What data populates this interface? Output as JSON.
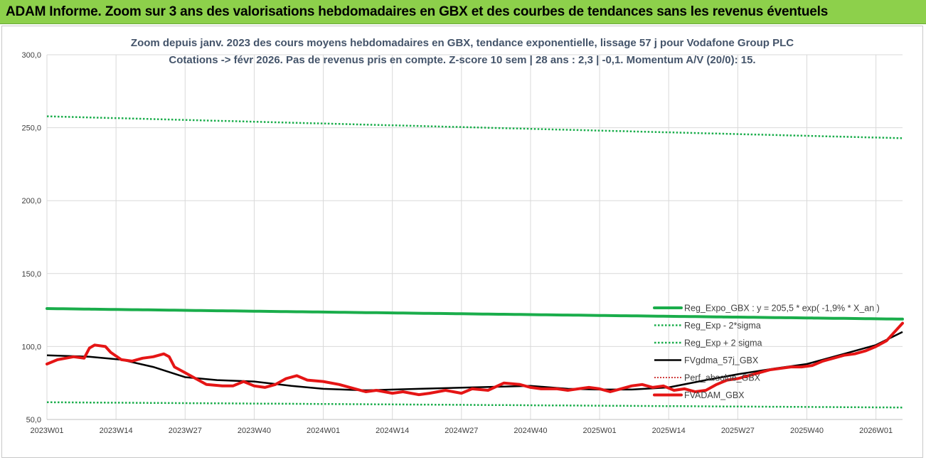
{
  "header": {
    "title": "ADAM Informe. Zoom sur 3 ans des valorisations hebdomadaires en GBX et des courbes de tendances sans les revenus éventuels"
  },
  "chart_data": {
    "type": "line",
    "subtitle_line1": "Zoom depuis janv. 2023 des cours moyens hebdomadaires en GBX, tendance exponentielle, lissage 57 j pour Vodafone Group PLC",
    "subtitle_line2": "Cotations -> févr 2026. Pas de revenus pris en compte. Z-score 10 sem | 28 ans : 2,3 | -0,1. Momentum A/V (20/0): 15.",
    "ylim": [
      50,
      300
    ],
    "yticks": [
      "50,0",
      "100,0",
      "150,0",
      "200,0",
      "250,0",
      "300,0"
    ],
    "ytick_values": [
      50,
      100,
      150,
      200,
      250,
      300
    ],
    "xtick_labels": [
      "2023W01",
      "2023W14",
      "2023W27",
      "2023W40",
      "2024W01",
      "2024W14",
      "2024W27",
      "2024W40",
      "2025W01",
      "2025W14",
      "2025W27",
      "2025W40",
      "2026W01"
    ],
    "xtick_index": [
      0,
      13,
      26,
      39,
      52,
      65,
      78,
      91,
      104,
      117,
      130,
      143,
      156
    ],
    "n_points": 162,
    "grid": true,
    "legend_position": "bottom-right",
    "series": [
      {
        "name": "Reg_Expo_GBX : y = 205,5 * exp( -1,9% * X_an )",
        "color": "#1aad4b",
        "style": "solid-thick",
        "start": 126.0,
        "end": 118.8
      },
      {
        "name": "Reg_Exp - 2*sigma",
        "color": "#1aad4b",
        "style": "dotted",
        "start": 61.8,
        "end": 58.2
      },
      {
        "name": "Reg_Exp + 2 sigma",
        "color": "#1aad4b",
        "style": "dotted",
        "start": 257.8,
        "end": 242.8
      },
      {
        "name": "FVgdma_57j_GBX",
        "color": "#000000",
        "style": "solid",
        "points": [
          [
            0,
            94
          ],
          [
            8,
            93
          ],
          [
            14,
            91
          ],
          [
            20,
            86
          ],
          [
            26,
            79
          ],
          [
            32,
            77
          ],
          [
            39,
            76
          ],
          [
            46,
            73
          ],
          [
            52,
            71
          ],
          [
            60,
            70
          ],
          [
            70,
            71
          ],
          [
            80,
            72
          ],
          [
            91,
            73
          ],
          [
            98,
            71
          ],
          [
            104,
            70.5
          ],
          [
            110,
            70.5
          ],
          [
            117,
            72
          ],
          [
            124,
            77
          ],
          [
            130,
            81
          ],
          [
            137,
            85
          ],
          [
            143,
            88
          ],
          [
            150,
            95
          ],
          [
            156,
            101
          ],
          [
            161,
            110
          ]
        ]
      },
      {
        "name": "Perf_absolue_GBX",
        "color": "#c00000",
        "style": "dotted-thin",
        "points": [
          [
            0,
            88
          ],
          [
            2,
            91
          ],
          [
            5,
            93
          ],
          [
            7,
            92
          ],
          [
            8,
            99
          ],
          [
            9,
            101
          ],
          [
            11,
            100
          ],
          [
            12,
            96
          ],
          [
            14,
            91
          ],
          [
            16,
            90
          ],
          [
            18,
            92
          ],
          [
            20,
            93
          ],
          [
            22,
            95
          ],
          [
            23,
            93
          ],
          [
            24,
            86
          ],
          [
            26,
            82
          ],
          [
            28,
            78
          ],
          [
            30,
            74
          ],
          [
            33,
            73
          ],
          [
            35,
            73
          ],
          [
            37,
            76
          ],
          [
            39,
            73
          ],
          [
            41,
            72
          ],
          [
            43,
            74
          ],
          [
            45,
            78
          ],
          [
            47,
            80
          ],
          [
            49,
            77
          ],
          [
            52,
            76
          ],
          [
            55,
            74
          ],
          [
            57,
            72
          ],
          [
            60,
            69
          ],
          [
            62,
            70
          ],
          [
            65,
            68
          ],
          [
            67,
            69
          ],
          [
            70,
            67
          ],
          [
            72,
            68
          ],
          [
            75,
            70
          ],
          [
            78,
            68
          ],
          [
            80,
            71
          ],
          [
            83,
            70
          ],
          [
            86,
            75
          ],
          [
            89,
            74
          ],
          [
            91,
            72
          ],
          [
            93,
            71
          ],
          [
            96,
            71
          ],
          [
            98,
            70
          ],
          [
            100,
            71
          ],
          [
            102,
            72
          ],
          [
            104,
            71
          ],
          [
            106,
            69
          ],
          [
            108,
            71
          ],
          [
            110,
            73
          ],
          [
            112,
            74
          ],
          [
            114,
            72
          ],
          [
            116,
            73
          ],
          [
            118,
            70
          ],
          [
            120,
            71
          ],
          [
            122,
            69
          ],
          [
            124,
            70
          ],
          [
            126,
            74
          ],
          [
            128,
            77
          ],
          [
            130,
            78
          ],
          [
            132,
            80
          ],
          [
            134,
            82
          ],
          [
            136,
            84
          ],
          [
            138,
            85
          ],
          [
            140,
            86
          ],
          [
            142,
            86
          ],
          [
            144,
            87
          ],
          [
            146,
            90
          ],
          [
            148,
            92
          ],
          [
            150,
            94
          ],
          [
            152,
            95
          ],
          [
            154,
            97
          ],
          [
            156,
            100
          ],
          [
            158,
            104
          ],
          [
            160,
            112
          ],
          [
            161,
            116
          ]
        ]
      },
      {
        "name": "FVADAM_GBX",
        "color": "#e51515",
        "style": "solid-thick",
        "points": [
          [
            0,
            88
          ],
          [
            2,
            91
          ],
          [
            5,
            93
          ],
          [
            7,
            92
          ],
          [
            8,
            99
          ],
          [
            9,
            101
          ],
          [
            11,
            100
          ],
          [
            12,
            96
          ],
          [
            14,
            91
          ],
          [
            16,
            90
          ],
          [
            18,
            92
          ],
          [
            20,
            93
          ],
          [
            22,
            95
          ],
          [
            23,
            93
          ],
          [
            24,
            86
          ],
          [
            26,
            82
          ],
          [
            28,
            78
          ],
          [
            30,
            74
          ],
          [
            33,
            73
          ],
          [
            35,
            73
          ],
          [
            37,
            76
          ],
          [
            39,
            73
          ],
          [
            41,
            72
          ],
          [
            43,
            74
          ],
          [
            45,
            78
          ],
          [
            47,
            80
          ],
          [
            49,
            77
          ],
          [
            52,
            76
          ],
          [
            55,
            74
          ],
          [
            57,
            72
          ],
          [
            60,
            69
          ],
          [
            62,
            70
          ],
          [
            65,
            68
          ],
          [
            67,
            69
          ],
          [
            70,
            67
          ],
          [
            72,
            68
          ],
          [
            75,
            70
          ],
          [
            78,
            68
          ],
          [
            80,
            71
          ],
          [
            83,
            70
          ],
          [
            86,
            75
          ],
          [
            89,
            74
          ],
          [
            91,
            72
          ],
          [
            93,
            71
          ],
          [
            96,
            71
          ],
          [
            98,
            70
          ],
          [
            100,
            71
          ],
          [
            102,
            72
          ],
          [
            104,
            71
          ],
          [
            106,
            69
          ],
          [
            108,
            71
          ],
          [
            110,
            73
          ],
          [
            112,
            74
          ],
          [
            114,
            72
          ],
          [
            116,
            73
          ],
          [
            118,
            70
          ],
          [
            120,
            71
          ],
          [
            122,
            69
          ],
          [
            124,
            70
          ],
          [
            126,
            74
          ],
          [
            128,
            77
          ],
          [
            130,
            78
          ],
          [
            132,
            80
          ],
          [
            134,
            82
          ],
          [
            136,
            84
          ],
          [
            138,
            85
          ],
          [
            140,
            86
          ],
          [
            142,
            86
          ],
          [
            144,
            87
          ],
          [
            146,
            90
          ],
          [
            148,
            92
          ],
          [
            150,
            94
          ],
          [
            152,
            95
          ],
          [
            154,
            97
          ],
          [
            156,
            100
          ],
          [
            158,
            104
          ],
          [
            160,
            112
          ],
          [
            161,
            116
          ]
        ]
      }
    ]
  }
}
